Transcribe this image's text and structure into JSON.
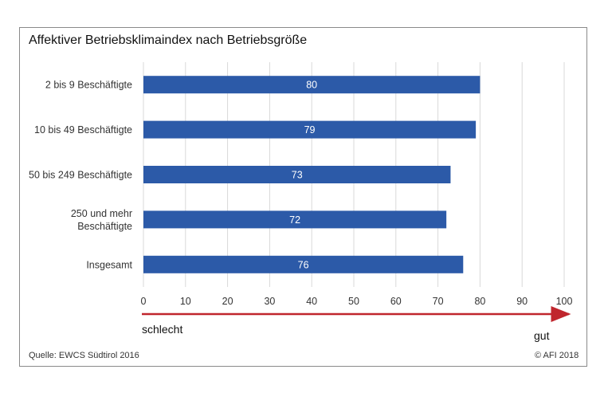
{
  "chart_data": {
    "type": "bar",
    "orientation": "horizontal",
    "title": "Affektiver Betriebsklimaindex nach Betriebsgröße",
    "categories": [
      [
        "2 bis 9 Beschäftigte"
      ],
      [
        "10 bis 49 Beschäftigte"
      ],
      [
        "50 bis 249 Beschäftigte"
      ],
      [
        "250 und mehr",
        "Beschäftigte"
      ],
      [
        "Insgesamt"
      ]
    ],
    "values": [
      80,
      79,
      73,
      72,
      76
    ],
    "xlim": [
      0,
      100
    ],
    "xticks": [
      "0",
      "10",
      "20",
      "30",
      "40",
      "50",
      "60",
      "70",
      "80",
      "90",
      "100"
    ],
    "grid": true,
    "bar_color": "#2c5aa8",
    "scale_labels": {
      "low": "schlecht",
      "high": "gut"
    },
    "arrow_color": "#c0262d"
  },
  "footer": {
    "source": "Quelle: EWCS Südtirol 2016",
    "copyright": "© AFI 2018"
  }
}
